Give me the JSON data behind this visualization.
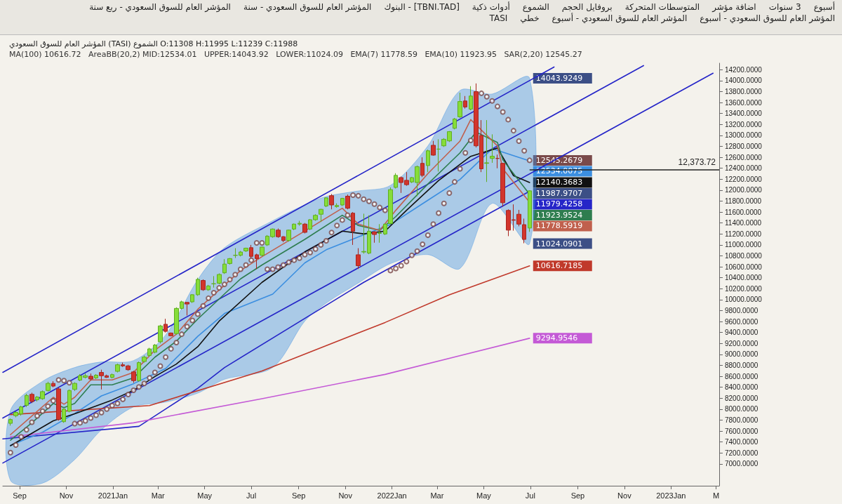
{
  "chart_data": {
    "type": "candlestick",
    "title": "المؤشر العام للسوق السعودي (TASI) الشموع O:11308 H:11995 L:11239 C:11988",
    "subtitle": "MA(100) 10616.72   AreaBB(20,2) MID:12534.01   UPPER:14043.92   LOWER:11024.09   EMA(7) 11778.59   EMA(10) 11923.95   SAR(2,20) 12545.27",
    "annotations": [
      "أسبوع",
      "3 سنوات",
      "اضافة مؤشر",
      "المتوسطات المتحركة",
      "بروفايل الحجم",
      "الشموع",
      "أدوات ذكية",
      "[TBNI.TAD] - البنوك",
      "المؤشر العام للسوق السعودي - سنة",
      "المؤشر العام للسوق السعودي - ربع سنة",
      "المؤشر العام للسوق السعودي - أسبوع",
      "المؤشر العام للسوق السعودي - أسبوع",
      "خطي",
      "TASI",
      {
        "text": "14043.9249",
        "x": "2022-06-30",
        "y": 14043.9249
      },
      {
        "text": "11987.9707",
        "x": "2022-06-30",
        "y": 11987.9707
      },
      {
        "text": "11024.0901",
        "x": "2022-06-30",
        "y": 11024.0901
      }
    ],
    "x": [
      "2020-08-20",
      "2020-08-27",
      "2020-09-03",
      "2020-09-10",
      "2020-09-17",
      "2020-09-24",
      "2020-10-01",
      "2020-10-08",
      "2020-10-15",
      "2020-10-22",
      "2020-10-29",
      "2020-11-05",
      "2020-11-12",
      "2020-11-19",
      "2020-11-26",
      "2020-12-03",
      "2020-12-10",
      "2020-12-17",
      "2020-12-24",
      "2020-12-31",
      "2021-01-07",
      "2021-01-14",
      "2021-01-21",
      "2021-01-28",
      "2021-02-04",
      "2021-02-11",
      "2021-02-18",
      "2021-02-25",
      "2021-03-04",
      "2021-03-11",
      "2021-03-18",
      "2021-03-25",
      "2021-04-01",
      "2021-04-08",
      "2021-04-15",
      "2021-04-22",
      "2021-04-29",
      "2021-05-06",
      "2021-05-13",
      "2021-05-20",
      "2021-05-27",
      "2021-06-03",
      "2021-06-10",
      "2021-06-17",
      "2021-06-24",
      "2021-07-01",
      "2021-07-08",
      "2021-07-15",
      "2021-07-22",
      "2021-07-29",
      "2021-08-05",
      "2021-08-12",
      "2021-08-19",
      "2021-08-26",
      "2021-09-02",
      "2021-09-09",
      "2021-09-16",
      "2021-09-23",
      "2021-09-30",
      "2021-10-07",
      "2021-10-14",
      "2021-10-21",
      "2021-10-28",
      "2021-11-04",
      "2021-11-11",
      "2021-11-18",
      "2021-11-25",
      "2021-12-02",
      "2021-12-09",
      "2021-12-16",
      "2021-12-23",
      "2021-12-30",
      "2022-01-06",
      "2022-01-13",
      "2022-01-20",
      "2022-01-27",
      "2022-02-03",
      "2022-02-10",
      "2022-02-17",
      "2022-02-24",
      "2022-03-03",
      "2022-03-10",
      "2022-03-17",
      "2022-03-24",
      "2022-03-31",
      "2022-04-07",
      "2022-04-14",
      "2022-04-21",
      "2022-04-28",
      "2022-05-05",
      "2022-05-12",
      "2022-05-19",
      "2022-05-26",
      "2022-06-02",
      "2022-06-09",
      "2022-06-16",
      "2022-06-23",
      "2022-06-30"
    ],
    "ohlc": [
      [
        7740,
        7830,
        7700,
        7810
      ],
      [
        7880,
        7960,
        7850,
        7940
      ],
      [
        7910,
        8060,
        7880,
        8040
      ],
      [
        8070,
        8280,
        8040,
        8250
      ],
      [
        8270,
        8300,
        8110,
        8140
      ],
      [
        8170,
        8240,
        8140,
        8220
      ],
      [
        8190,
        8340,
        8170,
        8320
      ],
      [
        8340,
        8500,
        8320,
        8470
      ],
      [
        8470,
        8510,
        8400,
        8420
      ],
      [
        8370,
        8400,
        7790,
        7810
      ],
      [
        7770,
        8010,
        7750,
        8000
      ],
      [
        7960,
        8360,
        7940,
        8340
      ],
      [
        8360,
        8490,
        8330,
        8470
      ],
      [
        8530,
        8640,
        8510,
        8610
      ],
      [
        8580,
        8650,
        8560,
        8610
      ],
      [
        8600,
        8650,
        8520,
        8550
      ],
      [
        8570,
        8640,
        8550,
        8620
      ],
      [
        8670,
        8720,
        8360,
        8610
      ],
      [
        8610,
        8630,
        8570,
        8580
      ],
      [
        8580,
        8650,
        8560,
        8630
      ],
      [
        8690,
        8830,
        8670,
        8810
      ],
      [
        8810,
        8850,
        8770,
        8790
      ],
      [
        8790,
        8810,
        8700,
        8720
      ],
      [
        8680,
        8700,
        8480,
        8520
      ],
      [
        8520,
        8870,
        8500,
        8850
      ],
      [
        8870,
        8980,
        8850,
        8950
      ],
      [
        8980,
        9120,
        8960,
        9100
      ],
      [
        9040,
        9190,
        9020,
        9170
      ],
      [
        9230,
        9540,
        9200,
        9520
      ],
      [
        9550,
        9650,
        9400,
        9420
      ],
      [
        9390,
        9400,
        9330,
        9340
      ],
      [
        9380,
        9860,
        9360,
        9840
      ],
      [
        9840,
        9980,
        9820,
        9960
      ],
      [
        9950,
        9960,
        9710,
        9920
      ],
      [
        9960,
        10100,
        9940,
        10090
      ],
      [
        10090,
        10400,
        10070,
        10370
      ],
      [
        10350,
        10370,
        10160,
        10180
      ],
      [
        10180,
        10270,
        10160,
        10250
      ],
      [
        10290,
        10430,
        10220,
        10290
      ],
      [
        10300,
        10480,
        10280,
        10460
      ],
      [
        10490,
        10740,
        10470,
        10650
      ],
      [
        10660,
        10760,
        10640,
        10750
      ],
      [
        10810,
        10940,
        10760,
        10810
      ],
      [
        10810,
        10890,
        10790,
        10870
      ],
      [
        10890,
        10950,
        10870,
        10940
      ],
      [
        10950,
        11000,
        10760,
        10790
      ],
      [
        10820,
        10840,
        10560,
        10750
      ],
      [
        10810,
        10970,
        10790,
        10960
      ],
      [
        11000,
        11180,
        10980,
        11160
      ],
      [
        11150,
        11300,
        11130,
        11290
      ],
      [
        11270,
        11300,
        11130,
        11150
      ],
      [
        11150,
        11160,
        11050,
        11080
      ],
      [
        11080,
        11280,
        11060,
        11270
      ],
      [
        11290,
        11390,
        11270,
        11380
      ],
      [
        11380,
        11440,
        11350,
        11395
      ],
      [
        11380,
        11400,
        11210,
        11230
      ],
      [
        11290,
        11470,
        11270,
        11460
      ],
      [
        11460,
        11560,
        11440,
        11540
      ],
      [
        11560,
        11660,
        11420,
        11650
      ],
      [
        11710,
        11870,
        11690,
        11860
      ],
      [
        11900,
        11930,
        11650,
        11730
      ],
      [
        11700,
        11760,
        11680,
        11720
      ],
      [
        11730,
        11860,
        11710,
        11850
      ],
      [
        11890,
        11920,
        11650,
        11670
      ],
      [
        11580,
        11600,
        11000,
        11250
      ],
      [
        10820,
        10940,
        10560,
        10620
      ],
      [
        10870,
        11570,
        10840,
        10880
      ],
      [
        10850,
        11540,
        10830,
        11250
      ],
      [
        11240,
        11250,
        11040,
        11190
      ],
      [
        11210,
        11380,
        11040,
        11220
      ],
      [
        11200,
        11390,
        11180,
        11380
      ],
      [
        11390,
        12050,
        11370,
        12010
      ],
      [
        12050,
        12310,
        12030,
        12270
      ],
      [
        12230,
        12250,
        11950,
        12140
      ],
      [
        12180,
        12330,
        12080,
        12100
      ],
      [
        12150,
        12240,
        12130,
        12230
      ],
      [
        12140,
        12450,
        11890,
        12430
      ],
      [
        12490,
        12600,
        12240,
        12270
      ],
      [
        12450,
        12740,
        12330,
        12720
      ],
      [
        12820,
        12900,
        12630,
        12640
      ],
      [
        12750,
        12930,
        12340,
        12750
      ],
      [
        12810,
        12950,
        12790,
        12930
      ],
      [
        12900,
        13080,
        12880,
        13070
      ],
      [
        13130,
        13320,
        13110,
        13300
      ],
      [
        13340,
        13780,
        13320,
        13620
      ],
      [
        13630,
        13720,
        13490,
        13520
      ],
      [
        13480,
        13900,
        13460,
        13720
      ],
      [
        13800,
        13950,
        12780,
        12810
      ],
      [
        13000,
        13280,
        12330,
        12390
      ],
      [
        12490,
        13280,
        12150,
        12500
      ],
      [
        12580,
        13020,
        12500,
        12620
      ],
      [
        12580,
        12650,
        12400,
        12580
      ],
      [
        12490,
        12500,
        11700,
        11770
      ],
      [
        11630,
        11650,
        11160,
        11270
      ],
      [
        11460,
        11740,
        11260,
        11450
      ],
      [
        11560,
        11640,
        11340,
        11380
      ],
      [
        11370,
        11480,
        11030,
        11100
      ],
      [
        11308,
        11995,
        11239,
        11988
      ]
    ],
    "series": [
      {
        "type": "line",
        "color": "#2525c8",
        "x": [
          "2020-08-10",
          "2022-08-01"
        ],
        "values": [
          8672,
          14250
        ]
      },
      {
        "type": "line",
        "color": "#2525c8",
        "x": [
          "2020-08-10",
          "2022-11-26"
        ],
        "values": [
          7837,
          14276
        ]
      },
      {
        "type": "line",
        "color": "#2525c8",
        "x": [
          "2020-08-10",
          "2023-02-25"
        ],
        "values": [
          7015,
          14137
        ]
      },
      {
        "type": "line",
        "color": "#2525c8",
        "x": [
          "2020-08-10",
          "2021-02-04",
          "2021-03-11",
          "2021-04-22",
          "2021-05-27",
          "2021-11-25",
          "2022-06-30"
        ],
        "values": [
          7457,
          7685,
          8002,
          8381,
          8760,
          10316,
          11979.4258
        ],
        "value_labels": [
          null,
          null,
          null,
          null,
          null,
          null,
          "11979.4258"
        ]
      },
      {
        "type": "line",
        "color": "#3b8ee0",
        "x": [
          "2020-08-20",
          "2020-10-01",
          "2020-11-12",
          "2020-12-17",
          "2021-01-28",
          "2021-03-11",
          "2021-04-22",
          "2021-05-27",
          "2021-07-29",
          "2021-09-09",
          "2021-10-07",
          "2021-11-18",
          "2021-12-30",
          "2022-02-17",
          "2022-03-31",
          "2022-05-12",
          "2022-06-30"
        ],
        "values": [
          7337,
          7578,
          7919,
          8242,
          8464,
          8742,
          9330,
          9747,
          10101,
          10671,
          10911,
          11145,
          11373,
          11816,
          12196,
          12758,
          12534.0075
        ],
        "value_labels": [
          null,
          null,
          null,
          null,
          null,
          null,
          null,
          null,
          null,
          null,
          null,
          null,
          null,
          null,
          null,
          null,
          "12534.0075"
        ],
        "upper": [
          7976,
          8508,
          8760,
          8862,
          8887,
          9355,
          10367,
          10949,
          11442,
          11733,
          11885,
          11986,
          12087,
          12809,
          13821,
          13757,
          14043.9249
        ],
        "lower": [
          6698,
          6648,
          7078,
          7622,
          8040,
          8128,
          8292,
          8545,
          8760,
          9608,
          9937,
          10304,
          10658,
          10823,
          10570,
          11759,
          11024.0901
        ]
      },
      {
        "type": "line",
        "color": "#c0392b",
        "x": [
          "2020-08-20",
          "2021-02-18",
          "2021-07-15",
          "2021-12-23",
          "2022-03-17",
          "2022-06-30"
        ],
        "values": [
          7900,
          8065,
          8697,
          9583,
          10089,
          10616.7185
        ],
        "value_labels": [
          null,
          null,
          null,
          null,
          null,
          "10616.7185"
        ]
      },
      {
        "type": "line",
        "color": "#c45ad6",
        "x": [
          "2020-08-20",
          "2021-01-28",
          "2021-07-15",
          "2021-12-23",
          "2022-06-30"
        ],
        "values": [
          7495,
          7749,
          8191,
          8634,
          9294.9546
        ],
        "value_labels": [
          null,
          null,
          null,
          null,
          "9294.9546"
        ]
      },
      {
        "type": "line",
        "color": "#111111",
        "x": [
          "2020-08-20",
          "2020-10-15",
          "2020-11-12",
          "2020-12-31",
          "2021-01-28",
          "2021-02-25",
          "2021-03-25",
          "2021-04-22",
          "2021-05-20",
          "2021-07-15",
          "2021-09-09",
          "2021-10-28",
          "2021-11-25",
          "2021-12-23",
          "2022-01-20",
          "2022-03-03",
          "2022-04-14",
          "2022-05-19",
          "2022-06-09",
          "2022-06-30"
        ],
        "values": [
          7331,
          7787,
          7913,
          8166,
          8343,
          8596,
          8824,
          9140,
          9608,
          10316,
          10873,
          11252,
          11202,
          11252,
          11632,
          12176,
          12619,
          12770,
          12265,
          12140.3683
        ],
        "value_labels": [
          null,
          null,
          null,
          null,
          null,
          null,
          null,
          null,
          null,
          null,
          null,
          null,
          null,
          null,
          null,
          null,
          null,
          null,
          null,
          "12140.3683"
        ]
      },
      {
        "type": "line",
        "color": "#2e7d4f",
        "x": [
          "2020-08-20",
          "2020-09-17",
          "2020-10-15",
          "2020-10-29",
          "2020-11-12",
          "2020-12-03",
          "2020-12-31",
          "2021-01-28",
          "2021-02-25",
          "2021-03-25",
          "2021-04-22",
          "2021-06-17",
          "2021-07-15",
          "2021-09-09",
          "2021-10-28",
          "2021-11-18",
          "2021-12-16",
          "2022-01-06",
          "2022-02-17",
          "2022-03-31",
          "2022-04-21",
          "2022-05-19",
          "2022-05-26",
          "2022-06-30"
        ],
        "values": [
          7432,
          7749,
          8103,
          8027,
          8103,
          8444,
          8444,
          8571,
          8950,
          9241,
          9646,
          10380,
          10633,
          11101,
          11543,
          11354,
          11265,
          11518,
          12113,
          12682,
          13062,
          12872,
          12555,
          11923.9524
        ],
        "value_labels": [
          null,
          null,
          null,
          null,
          null,
          null,
          null,
          null,
          null,
          null,
          null,
          null,
          null,
          null,
          null,
          null,
          null,
          null,
          null,
          null,
          null,
          null,
          null,
          "11923.9524"
        ]
      },
      {
        "type": "line",
        "color": "#c0604d",
        "x": [
          "2020-08-20",
          "2020-09-17",
          "2020-10-15",
          "2020-10-29",
          "2020-11-12",
          "2020-12-03",
          "2020-12-31",
          "2021-01-28",
          "2021-02-25",
          "2021-03-25",
          "2021-04-22",
          "2021-06-17",
          "2021-07-15",
          "2021-09-09",
          "2021-10-28",
          "2021-11-18",
          "2021-12-16",
          "2022-01-06",
          "2022-02-17",
          "2022-03-31",
          "2022-04-14",
          "2022-05-19",
          "2022-05-26",
          "2022-06-30"
        ],
        "values": [
          7533,
          7875,
          8216,
          8090,
          8216,
          8533,
          8533,
          8672,
          9077,
          9368,
          9823,
          10532,
          10785,
          11253,
          11670,
          11379,
          11265,
          11632,
          12303,
          12897,
          13289,
          12809,
          12391,
          11778.5919
        ],
        "value_labels": [
          null,
          null,
          null,
          null,
          null,
          null,
          null,
          null,
          null,
          null,
          null,
          null,
          null,
          null,
          null,
          null,
          null,
          null,
          null,
          null,
          null,
          null,
          null,
          "11778.5919"
        ]
      },
      {
        "type": "scatter",
        "color": "#7a4a4a",
        "marker": "circle",
        "values": [
          7205,
          7344,
          7495,
          7622,
          7761,
          7875,
          7963,
          8052,
          8153,
          8533,
          8520,
          8482,
          7736,
          7749,
          7786,
          7837,
          7888,
          7938,
          8002,
          8065,
          8103,
          8179,
          8267,
          8343,
          8406,
          8470,
          8571,
          8672,
          8786,
          8950,
          9102,
          9216,
          9368,
          9507,
          9621,
          9735,
          9887,
          10026,
          10127,
          10215,
          10279,
          10367,
          10456,
          10557,
          10633,
          10721,
          11038,
          11038,
          10557,
          10557,
          10595,
          10633,
          10683,
          10721,
          10759,
          10822,
          10860,
          10924,
          11000,
          11075,
          11227,
          11354,
          11455,
          11543,
          11910,
          11898,
          11835,
          11797,
          11746,
          11683,
          11632,
          10532,
          10570,
          10620,
          10696,
          10810,
          10886,
          11012,
          11177,
          11379,
          11581,
          11759,
          11948,
          12151,
          12391,
          12682,
          12910,
          null,
          13770,
          13707,
          13631,
          13530,
          13428,
          13289,
          13087,
          12897,
          12720,
          12545.2679
        ],
        "value_labels": [
          null,
          null,
          null,
          null,
          null,
          null,
          null,
          null,
          null,
          null,
          null,
          null,
          null,
          null,
          null,
          null,
          null,
          null,
          null,
          null,
          null,
          null,
          null,
          null,
          null,
          null,
          null,
          null,
          null,
          null,
          null,
          null,
          null,
          null,
          null,
          null,
          null,
          null,
          null,
          null,
          null,
          null,
          null,
          null,
          null,
          null,
          null,
          null,
          null,
          null,
          null,
          null,
          null,
          null,
          null,
          null,
          null,
          null,
          null,
          null,
          null,
          null,
          null,
          null,
          null,
          null,
          null,
          null,
          null,
          null,
          null,
          null,
          null,
          null,
          null,
          null,
          null,
          null,
          null,
          null,
          null,
          null,
          null,
          null,
          null,
          null,
          null,
          null,
          null,
          null,
          null,
          null,
          null,
          null,
          null,
          null,
          null,
          "12545.2679"
        ]
      }
    ],
    "ref_lines": [
      {
        "axis": "y",
        "value": 12373.72,
        "label": "12,373.72",
        "color": "#222222"
      }
    ],
    "xlim": [
      "2020-08-10",
      "2023-03-05"
    ],
    "xticks": [
      {
        "value": "2020-09-01",
        "label": "Sep"
      },
      {
        "value": "2020-11-01",
        "label": "Nov"
      },
      {
        "value": "2021-01-01",
        "label": "2021Jan"
      },
      {
        "value": "2021-03-01",
        "label": "Mar"
      },
      {
        "value": "2021-05-01",
        "label": "May"
      },
      {
        "value": "2021-07-01",
        "label": "Jul"
      },
      {
        "value": "2021-09-01",
        "label": "Sep"
      },
      {
        "value": "2021-11-01",
        "label": "Nov"
      },
      {
        "value": "2022-01-01",
        "label": "2022Jan"
      },
      {
        "value": "2022-03-01",
        "label": "Mar"
      },
      {
        "value": "2022-05-01",
        "label": "May"
      },
      {
        "value": "2022-07-01",
        "label": "Jul"
      },
      {
        "value": "2022-09-01",
        "label": "Sep"
      },
      {
        "value": "2022-11-01",
        "label": "Nov"
      },
      {
        "value": "2023-01-01",
        "label": "2023Jan"
      },
      {
        "value": "2023-03-01",
        "label": "M"
      }
    ],
    "ylim": [
      6600,
      14320
    ],
    "yticks": [
      {
        "value": 7000,
        "label": "7000.0000"
      },
      {
        "value": 7200,
        "label": "7200.0000"
      },
      {
        "value": 7400,
        "label": "7400.0000"
      },
      {
        "value": 7600,
        "label": "7600.0000"
      },
      {
        "value": 7800,
        "label": "7800.0000"
      },
      {
        "value": 8000,
        "label": "8000.0000"
      },
      {
        "value": 8200,
        "label": "8200.0000"
      },
      {
        "value": 8400,
        "label": "8400.0000"
      },
      {
        "value": 8600,
        "label": "8600.0000"
      },
      {
        "value": 8800,
        "label": "8800.0000"
      },
      {
        "value": 9000,
        "label": "9000.0000"
      },
      {
        "value": 9200,
        "label": "9200.0000"
      },
      {
        "value": 9400,
        "label": "9400.0000"
      },
      {
        "value": 9600,
        "label": "9600.0000"
      },
      {
        "value": 9800,
        "label": "9800.0000"
      },
      {
        "value": 10000,
        "label": "10000.0000"
      },
      {
        "value": 10200,
        "label": "10200.0000"
      },
      {
        "value": 10400,
        "label": "10400.0000"
      },
      {
        "value": 10600,
        "label": "10600.0000"
      },
      {
        "value": 10800,
        "label": "10800.0000"
      },
      {
        "value": 11000,
        "label": "11000.0000"
      },
      {
        "value": 11200,
        "label": "11200.0000"
      },
      {
        "value": 11400,
        "label": "11400.0000"
      },
      {
        "value": 11600,
        "label": "11600.0000"
      },
      {
        "value": 11800,
        "label": "11800.0000"
      },
      {
        "value": 12000,
        "label": "12000.0000"
      },
      {
        "value": 12200,
        "label": "12200.0000"
      },
      {
        "value": 12400,
        "label": "12400.0000"
      },
      {
        "value": 12600,
        "label": "12600.0000"
      },
      {
        "value": 12800,
        "label": "12800.0000"
      },
      {
        "value": 13000,
        "label": "13000.0000"
      },
      {
        "value": 13200,
        "label": "13200.0000"
      },
      {
        "value": 13400,
        "label": "13400.0000"
      },
      {
        "value": 13600,
        "label": "13600.0000"
      },
      {
        "value": 13800,
        "label": "13800.0000"
      },
      {
        "value": 14000,
        "label": "14000.0000"
      },
      {
        "value": 14200,
        "label": "14200.0000"
      }
    ]
  }
}
